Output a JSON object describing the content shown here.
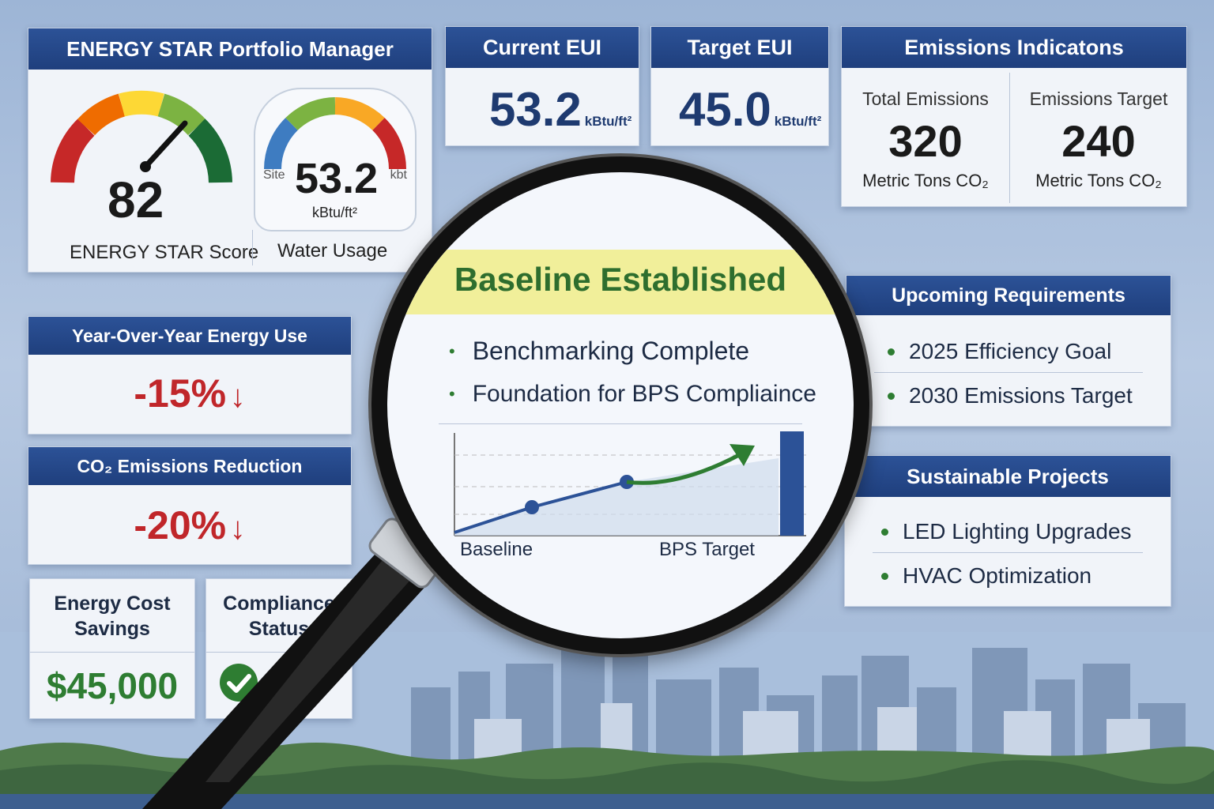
{
  "portfolio": {
    "title": "ENERGY STAR Portfolio Manager",
    "score_value": "82",
    "score_label": "ENERGY STAR Score",
    "water_value": "53.2",
    "water_unit": "kBtu/ft²",
    "water_side_left": "Site",
    "water_side_right": "kbt",
    "water_label": "Water Usage"
  },
  "current_eui": {
    "title": "Current EUI",
    "value": "53.2",
    "unit": "kBtu/ft²"
  },
  "target_eui": {
    "title": "Target EUI",
    "value": "45.0",
    "unit": "kBtu/ft²"
  },
  "emissions": {
    "title": "Emissions Indicatons",
    "total_label": "Total Emissions",
    "total_value": "320",
    "total_unit": "Metric Tons CO₂",
    "target_label": "Emissions Target",
    "target_value": "240",
    "target_unit": "Metric Tons CO₂"
  },
  "yoy": {
    "title": "Year-Over-Year Energy Use",
    "value": "-15%"
  },
  "co2": {
    "title": "CO₂ Emissions Reduction",
    "value": "-20%"
  },
  "cost": {
    "title": "Energy Cost Savings",
    "value": "$45,000"
  },
  "compliance": {
    "title": "Compliance Status"
  },
  "baseline": {
    "title": "Baseline Established",
    "items": [
      "Benchmarking Complete",
      "Foundation for BPS Compliaince"
    ],
    "x_start": "Baseline",
    "x_end": "BPS Target"
  },
  "upcoming": {
    "title": "Upcoming Requirements",
    "items": [
      "2025 Efficiency Goal",
      "2030 Emissions Target"
    ]
  },
  "projects": {
    "title": "Sustainable Projects",
    "items": [
      "LED Lighting Upgrades",
      "HVAC Optimization"
    ]
  },
  "colors": {
    "header_blue": "#1f3f7d",
    "value_blue": "#1e3a70",
    "negative_red": "#c0262a",
    "positive_green": "#2e7d32",
    "highlight_yellow": "#f1ef9a"
  }
}
